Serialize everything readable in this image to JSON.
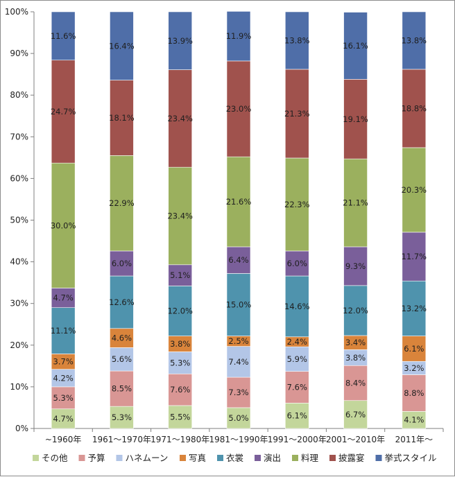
{
  "chart_data": {
    "type": "bar",
    "stacked": true,
    "percent_stacked": true,
    "categories": [
      "~1960年",
      "1961～1970年",
      "1971～1980年",
      "1981～1990年",
      "1991～2000年",
      "2001～2010年",
      "2011年～"
    ],
    "y_ticks": [
      "0%",
      "10%",
      "20%",
      "30%",
      "40%",
      "50%",
      "60%",
      "70%",
      "80%",
      "90%",
      "100%"
    ],
    "ylim": [
      0,
      100
    ],
    "grid": false,
    "legend_position": "bottom",
    "title": "",
    "xlabel": "",
    "ylabel": "",
    "series": [
      {
        "name": "その他",
        "color": "#c3d69b",
        "values": [
          4.7,
          5.3,
          5.5,
          5.0,
          6.1,
          6.7,
          4.1
        ],
        "labels": [
          "4.7%",
          "5.3%",
          "5.5%",
          "5.0%",
          "6.1%",
          "6.7%",
          "4.1%"
        ]
      },
      {
        "name": "予算",
        "color": "#d99694",
        "values": [
          5.3,
          8.5,
          7.6,
          7.3,
          7.6,
          8.4,
          8.8
        ],
        "labels": [
          "5.3%",
          "8.5%",
          "7.6%",
          "7.3%",
          "7.6%",
          "8.4%",
          "8.8%"
        ]
      },
      {
        "name": "ハネムーン",
        "color": "#b3c6e7",
        "values": [
          4.2,
          5.6,
          5.3,
          7.4,
          5.9,
          3.8,
          3.2
        ],
        "labels": [
          "4.2%",
          "5.6%",
          "5.3%",
          "7.4%",
          "5.9%",
          "3.8%",
          "3.2%"
        ]
      },
      {
        "name": "写真",
        "color": "#d9843b",
        "values": [
          3.7,
          4.6,
          3.8,
          2.5,
          2.4,
          3.4,
          6.1
        ],
        "labels": [
          "3.7%",
          "4.6%",
          "3.8%",
          "2.5%",
          "2.4%",
          "3.4%",
          "6.1%"
        ]
      },
      {
        "name": "衣裳",
        "color": "#4f93ad",
        "values": [
          11.1,
          12.6,
          12.0,
          15.0,
          14.6,
          12.0,
          13.2
        ],
        "labels": [
          "11.1%",
          "12.6%",
          "12.0%",
          "15.0%",
          "14.6%",
          "12.0%",
          "13.2%"
        ]
      },
      {
        "name": "演出",
        "color": "#7a5f9a",
        "values": [
          4.7,
          6.0,
          5.1,
          6.4,
          6.0,
          9.3,
          11.7
        ],
        "labels": [
          "4.7%",
          "6.0%",
          "5.1%",
          "6.4%",
          "6.0%",
          "9.3%",
          "11.7%"
        ]
      },
      {
        "name": "料理",
        "color": "#9bb05e",
        "values": [
          30.0,
          22.9,
          23.4,
          21.6,
          22.3,
          21.1,
          20.3
        ],
        "labels": [
          "30.0%",
          "22.9%",
          "23.4%",
          "21.6%",
          "22.3%",
          "21.1%",
          "20.3%"
        ]
      },
      {
        "name": "披露宴",
        "color": "#a0524d",
        "values": [
          24.7,
          18.1,
          23.4,
          23.0,
          21.3,
          19.1,
          18.8
        ],
        "labels": [
          "24.7%",
          "18.1%",
          "23.4%",
          "23.0%",
          "21.3%",
          "19.1%",
          "18.8%"
        ]
      },
      {
        "name": "挙式スタイル",
        "color": "#4f6ea8",
        "values": [
          11.6,
          16.4,
          13.9,
          11.9,
          13.8,
          16.1,
          13.8
        ],
        "labels": [
          "11.6%",
          "16.4%",
          "13.9%",
          "11.9%",
          "13.8%",
          "16.1%",
          "13.8%"
        ]
      }
    ]
  }
}
